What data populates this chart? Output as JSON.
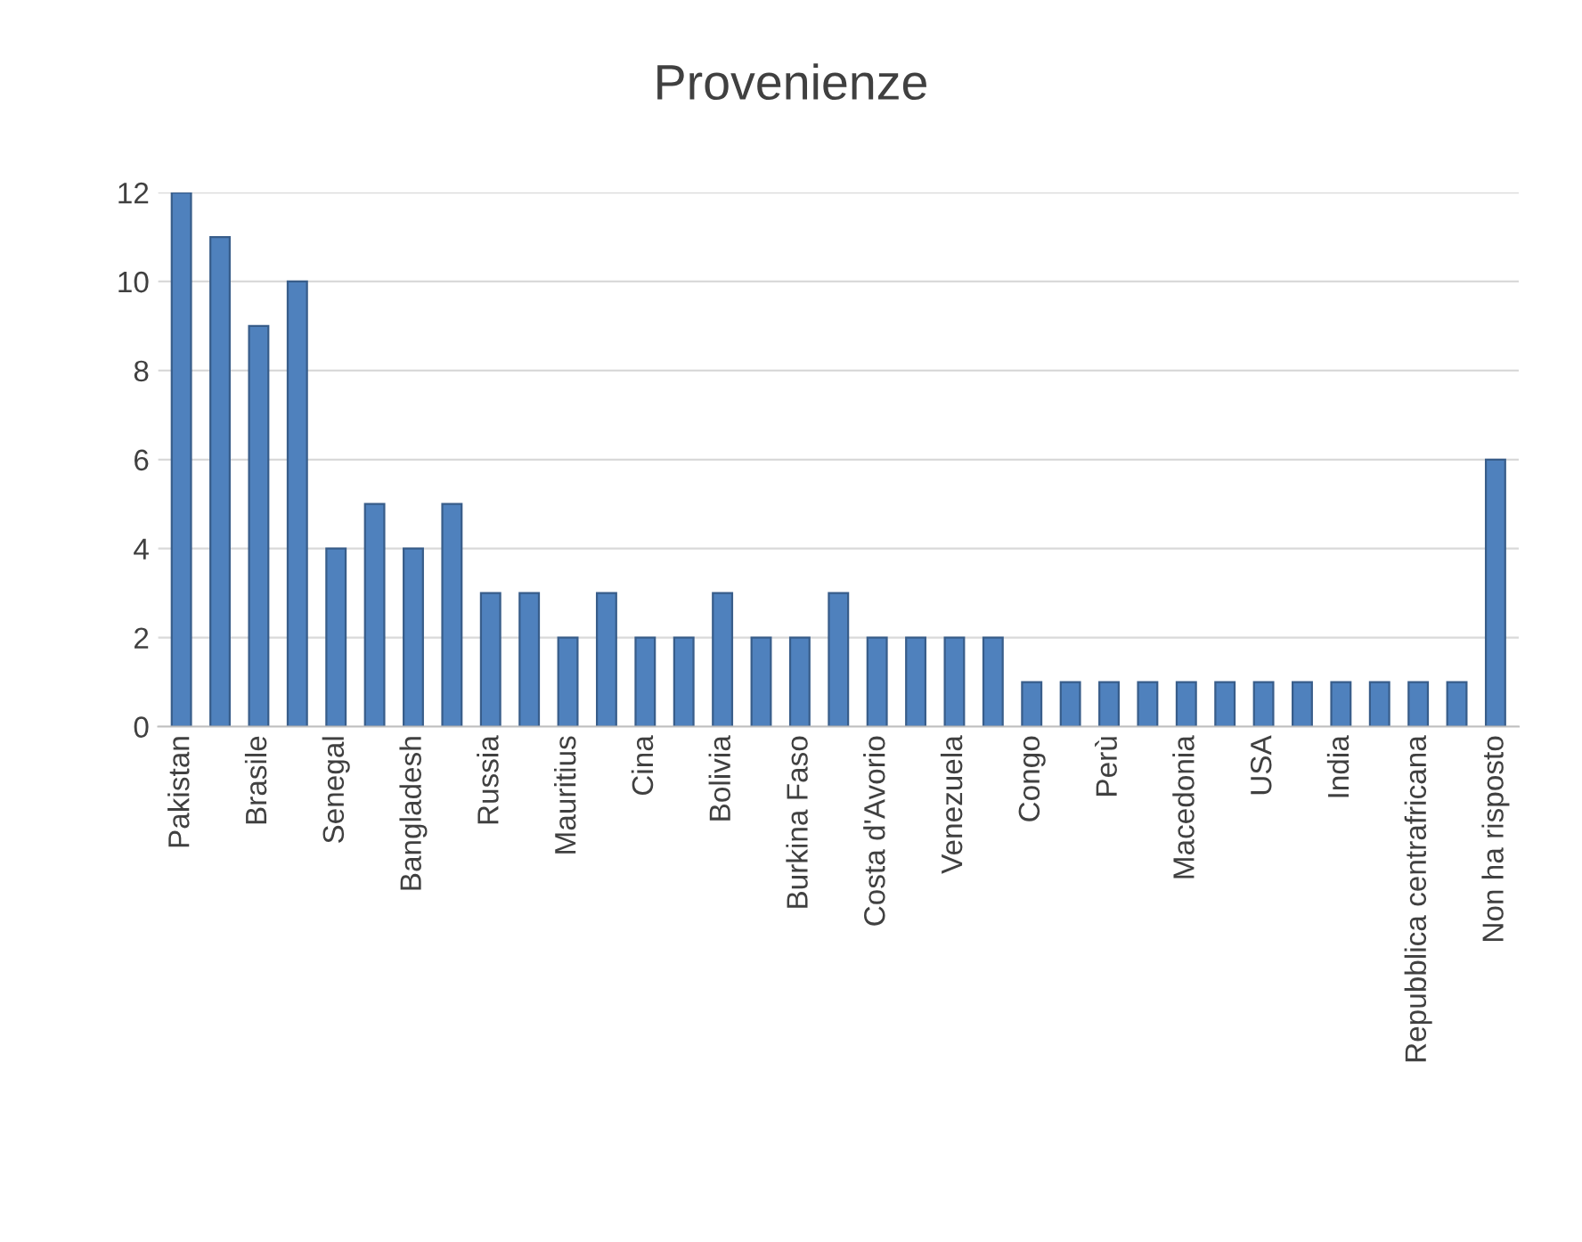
{
  "chart_data": {
    "type": "bar",
    "title": "Provenienze",
    "categories": [
      "Pakistan",
      null,
      "Brasile",
      null,
      "Senegal",
      null,
      "Bangladesh",
      null,
      "Russia",
      null,
      "Mauritius",
      null,
      "Cina",
      null,
      "Bolivia",
      null,
      "Burkina Faso",
      null,
      "Costa d'Avorio",
      null,
      "Venezuela",
      null,
      "Congo",
      null,
      "Perù",
      null,
      "Macedonia",
      null,
      "USA",
      null,
      "India",
      null,
      "Repubblica centrafricana",
      null,
      "Non ha risposto"
    ],
    "values": [
      12,
      11,
      9,
      10,
      4,
      5,
      4,
      5,
      3,
      3,
      2,
      3,
      2,
      2,
      3,
      2,
      2,
      3,
      2,
      2,
      2,
      2,
      1,
      1,
      1,
      1,
      1,
      1,
      1,
      1,
      1,
      1,
      1,
      1,
      6
    ],
    "color": "#4f81bd",
    "ylim": [
      0,
      12
    ],
    "yticks": [
      0,
      2,
      4,
      6,
      8,
      10,
      12
    ],
    "grid": "y",
    "legend": false
  }
}
